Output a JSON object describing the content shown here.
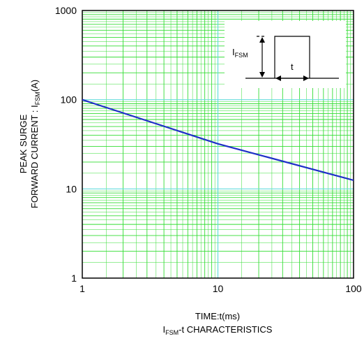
{
  "chart_data": {
    "type": "line",
    "title": "I_FSM-t CHARACTERISTICS",
    "title_parts": {
      "main": "I",
      "sub": "FSM",
      "rest": "-t CHARACTERISTICS"
    },
    "xlabel": "TIME:t(ms)",
    "ylabel": {
      "line1": "PEAK SURGE",
      "line2_main": "FORWARD CURRENT : I",
      "line2_sub": "FSM",
      "line2_rest": "(A)"
    },
    "x_scale": "log",
    "y_scale": "log",
    "xlim": [
      1,
      100
    ],
    "ylim": [
      1,
      1000
    ],
    "x_ticks": [
      {
        "value": 1,
        "label": "1"
      },
      {
        "value": 10,
        "label": "10"
      },
      {
        "value": 100,
        "label": "100"
      }
    ],
    "y_ticks": [
      {
        "value": 1,
        "label": "1"
      },
      {
        "value": 10,
        "label": "10"
      },
      {
        "value": 100,
        "label": "100"
      },
      {
        "value": 1000,
        "label": "1000"
      }
    ],
    "grid": true,
    "series": [
      {
        "x": [
          1,
          10,
          100
        ],
        "y": [
          100,
          32,
          12.5
        ],
        "color": "#1f2fc8"
      }
    ],
    "inset": {
      "label_main": "I",
      "label_sub": "FSM",
      "t_label": "t"
    },
    "colors": {
      "grid": "#33dd33",
      "decade": "#66dddd",
      "axis": "#000000",
      "line": "#1f2fc8"
    }
  }
}
